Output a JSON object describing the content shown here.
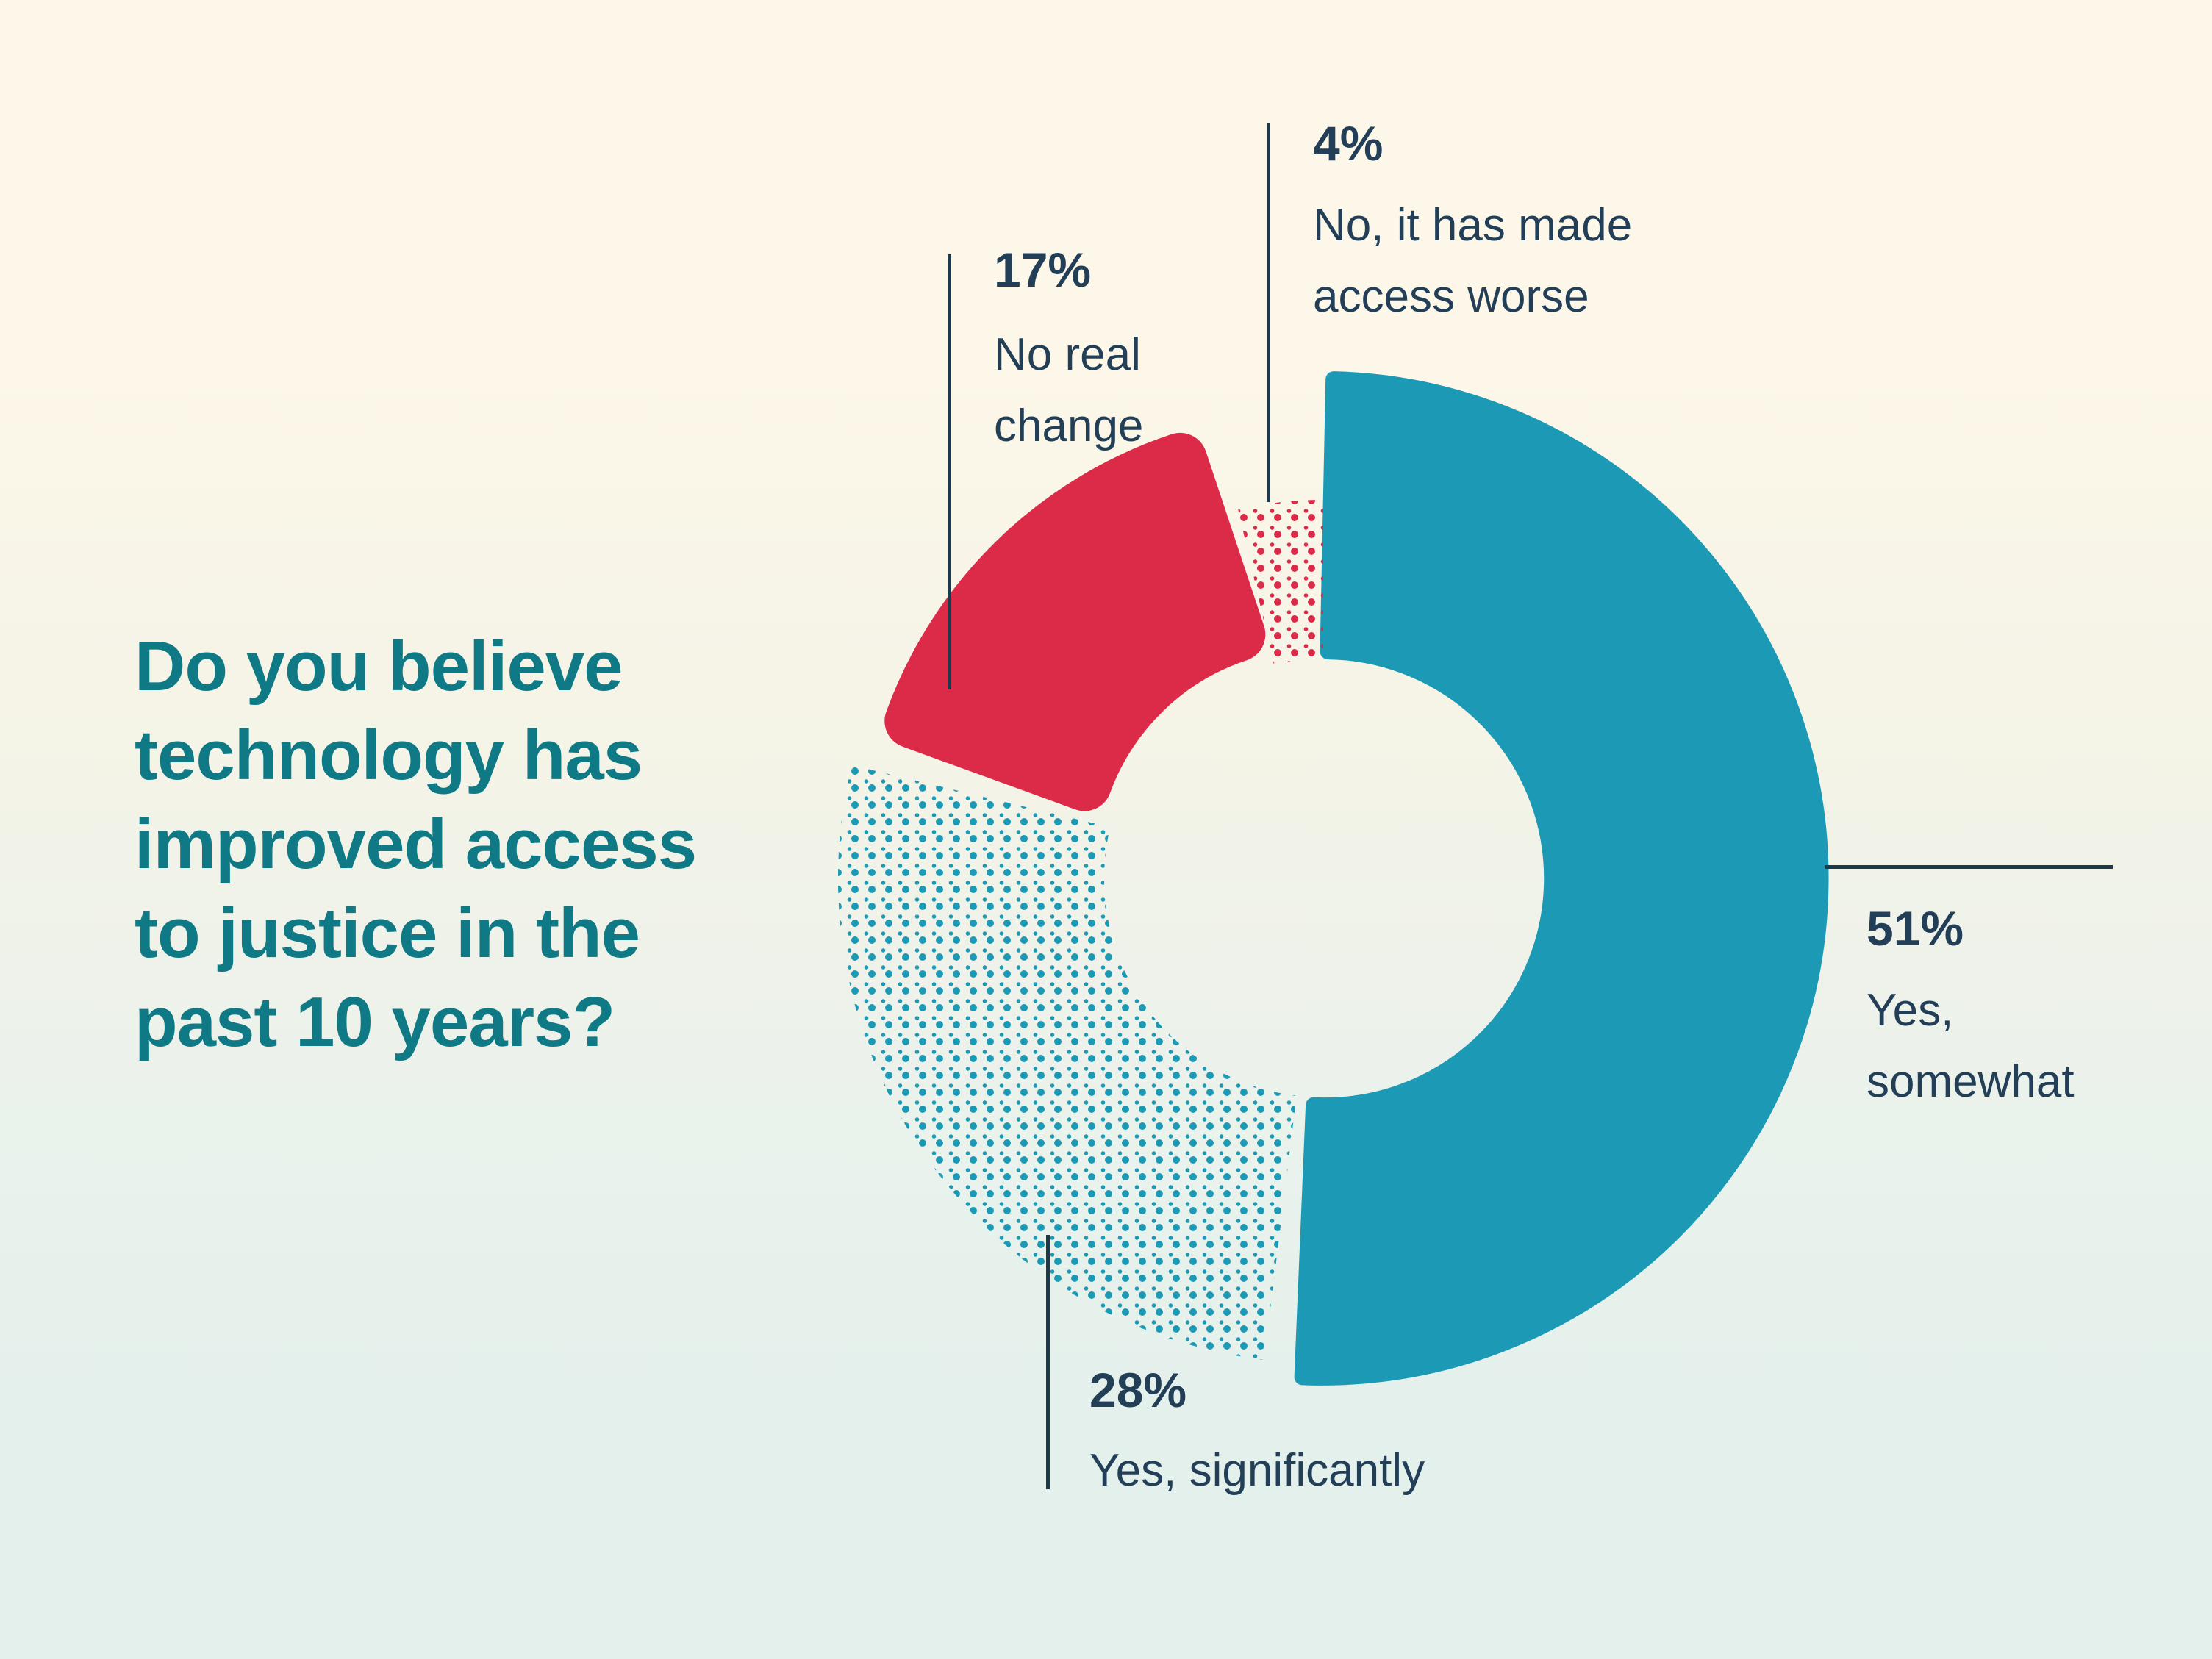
{
  "question": {
    "text": "Do you believe technology has improved access to justice in the past 10 years?",
    "lines": [
      "Do you believe",
      "technology has",
      "improved access",
      "to justice in the",
      "past 10 years?"
    ],
    "color": "#0f7a85"
  },
  "theme": {
    "background_top": "#fcf7e8",
    "background_bottom": "#e3f0ec",
    "leader_line_color": "#1c3a4e",
    "label_text_color": "#223f57"
  },
  "chart_data": {
    "type": "pie",
    "subtype": "donut",
    "title": "Do you believe technology has improved access to justice in the past 10 years?",
    "unit": "percent",
    "legend_position": "callouts-around-donut",
    "start_angle_deg": 0,
    "direction": "clockwise",
    "segments": [
      {
        "label": "Yes, somewhat",
        "value": 51,
        "display": "51%",
        "color": "#1c9ab5",
        "fill_style": "solid",
        "label_lines": [
          "Yes,",
          "somewhat"
        ]
      },
      {
        "label": "Yes, significantly",
        "value": 28,
        "display": "28%",
        "color": "#1c9ab5",
        "fill_style": "dotted",
        "label_lines": [
          "Yes, significantly"
        ]
      },
      {
        "label": "No real change",
        "value": 17,
        "display": "17%",
        "color": "#db2b48",
        "fill_style": "solid",
        "label_lines": [
          "No real",
          "change"
        ]
      },
      {
        "label": "No, it has made access worse",
        "value": 4,
        "display": "4%",
        "color": "#db2b48",
        "fill_style": "dotted",
        "label_lines": [
          "No, it has made",
          "access worse"
        ]
      }
    ]
  }
}
